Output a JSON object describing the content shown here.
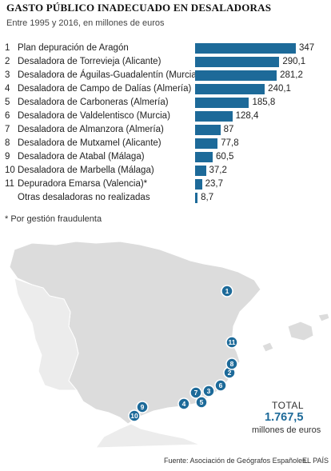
{
  "title": "GASTO PÚBLICO INADECUADO EN DESALADORAS",
  "subtitle": "Entre 1995 y 2016, en millones de euros",
  "footnote": "* Por gestión fraudulenta",
  "source": "Fuente: Asociación de Geógrafos Españoles.",
  "brand": "EL PAÍS",
  "total": {
    "label": "TOTAL",
    "value": "1.767,5",
    "unit": "millones de euros"
  },
  "colors": {
    "bar": "#1d6a99",
    "map_fill": "#dcdcdc",
    "map_stroke": "#ffffff",
    "marker": "#1d6a99"
  },
  "chart_data": {
    "type": "bar",
    "orientation": "horizontal",
    "categories": [
      "Plan depuración de Aragón",
      "Desaladora de Torrevieja (Alicante)",
      "Desaladora de Águilas-Guadalentín (Murcia)",
      "Desaladora de Campo de Dalías (Almería)",
      "Desaladora de Carboneras (Almería)",
      "Desaladora de Valdelentisco (Murcia)",
      "Desaladora de Almanzora (Almería)",
      "Desaladora de Mutxamel (Alicante)",
      "Desaladora de Atabal (Málaga)",
      "Desaladora de Marbella (Málaga)",
      "Depuradora Emarsa (Valencia)*",
      "Otras desaladoras no realizadas"
    ],
    "numbers": [
      "1",
      "2",
      "3",
      "4",
      "5",
      "6",
      "7",
      "8",
      "9",
      "10",
      "11",
      ""
    ],
    "values": [
      347,
      290.1,
      281.2,
      240.1,
      185.8,
      128.4,
      87,
      77.8,
      60.5,
      37.2,
      23.7,
      8.7
    ],
    "value_labels": [
      "347",
      "290,1",
      "281,2",
      "240,1",
      "185,8",
      "128,4",
      "87",
      "77,8",
      "60,5",
      "37,2",
      "23,7",
      "8,7"
    ],
    "title": "GASTO PÚBLICO INADECUADO EN DESALADORAS",
    "xlim": [
      0,
      347
    ]
  },
  "map": {
    "markers": [
      "1",
      "2",
      "3",
      "4",
      "5",
      "6",
      "7",
      "8",
      "9",
      "10",
      "11"
    ]
  }
}
